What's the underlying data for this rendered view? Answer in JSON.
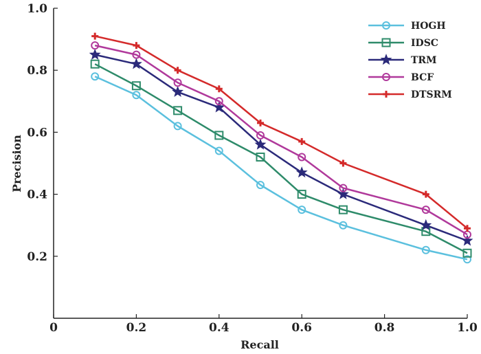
{
  "chart_data": {
    "type": "line",
    "xlabel": "Recall",
    "ylabel": "Precision",
    "xlim": [
      0,
      1.0
    ],
    "ylim": [
      0,
      1.0
    ],
    "x_ticks": [
      "0",
      "0.2",
      "0.4",
      "0.6",
      "0.8",
      "1.0"
    ],
    "y_ticks": [
      "0.2",
      "0.4",
      "0.6",
      "0.8",
      "1.0"
    ],
    "legend_position": "top-right",
    "grid": false,
    "x": [
      0.1,
      0.2,
      0.3,
      0.4,
      0.5,
      0.6,
      0.7,
      0.9,
      1.0
    ],
    "series": [
      {
        "name": "HOGH",
        "color": "#5bc0de",
        "marker": "circle",
        "values": [
          0.78,
          0.72,
          0.62,
          0.54,
          0.43,
          0.35,
          0.3,
          0.22,
          0.19
        ]
      },
      {
        "name": "IDSC",
        "color": "#2e8b6a",
        "marker": "square",
        "values": [
          0.82,
          0.75,
          0.67,
          0.59,
          0.52,
          0.4,
          0.35,
          0.28,
          0.21
        ]
      },
      {
        "name": "TRM",
        "color": "#2b2a7a",
        "marker": "star",
        "values": [
          0.85,
          0.82,
          0.73,
          0.68,
          0.56,
          0.47,
          0.4,
          0.3,
          0.25
        ]
      },
      {
        "name": "BCF",
        "color": "#b0399b",
        "marker": "circle",
        "values": [
          0.88,
          0.85,
          0.76,
          0.7,
          0.59,
          0.52,
          0.42,
          0.35,
          0.27
        ]
      },
      {
        "name": "DTSRM",
        "color": "#d42a2a",
        "marker": "plus",
        "values": [
          0.91,
          0.88,
          0.8,
          0.74,
          0.63,
          0.57,
          0.5,
          0.4,
          0.29
        ]
      }
    ]
  }
}
